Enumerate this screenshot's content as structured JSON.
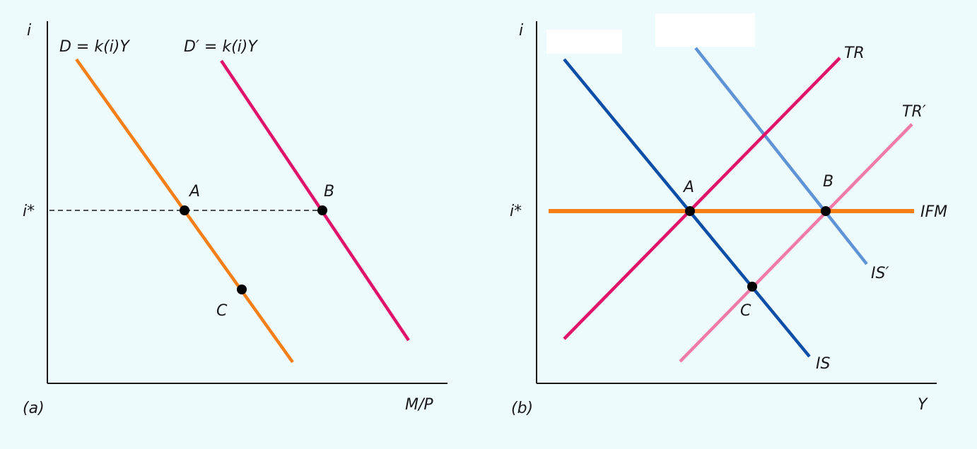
{
  "panel_a": {
    "caption": "(a)",
    "axis_y_label": "i",
    "axis_x_label": "M/P",
    "rate_label": "i*",
    "curve_d_label": "D = k(i)Y",
    "curve_d_prime_label": "D′ = k(i)Y",
    "point_a_label": "A",
    "point_b_label": "B",
    "point_c_label": "C"
  },
  "panel_b": {
    "caption": "(b)",
    "axis_y_label": "i",
    "axis_x_label": "Y",
    "rate_label": "i*",
    "tr_label": "TR",
    "tr_prime_label": "TR′",
    "ifm_label": "IFM",
    "is_label": "IS",
    "is_prime_label": "IS′",
    "point_a_label": "A",
    "point_b_label": "B",
    "point_c_label": "C"
  },
  "colors": {
    "background": "#eefbfd",
    "orange": "#f57f17",
    "magenta": "#e0136b",
    "pink": "#f07aa8",
    "dark_blue": "#0d4fa8",
    "light_blue": "#5e93d6",
    "axis": "#1a1a1a"
  }
}
